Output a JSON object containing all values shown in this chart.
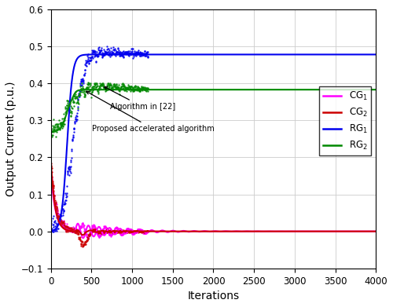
{
  "title": "",
  "xlabel": "Iterations",
  "ylabel": "Output Current (p.u.)",
  "xlim": [
    0,
    4000
  ],
  "ylim": [
    -0.1,
    0.6
  ],
  "xticks": [
    0,
    500,
    1000,
    1500,
    2000,
    2500,
    3000,
    3500,
    4000
  ],
  "yticks": [
    -0.1,
    0.0,
    0.1,
    0.2,
    0.3,
    0.4,
    0.5,
    0.6
  ],
  "colors": {
    "CG1": "#FF00FF",
    "CG2": "#CC0000",
    "RG1": "#0000EE",
    "RG2": "#008800"
  },
  "annotation1": "Algorithm in [22]",
  "annotation2": "Proposed accelerated algorithm",
  "background_color": "#ffffff",
  "grid_color": "#cccccc"
}
